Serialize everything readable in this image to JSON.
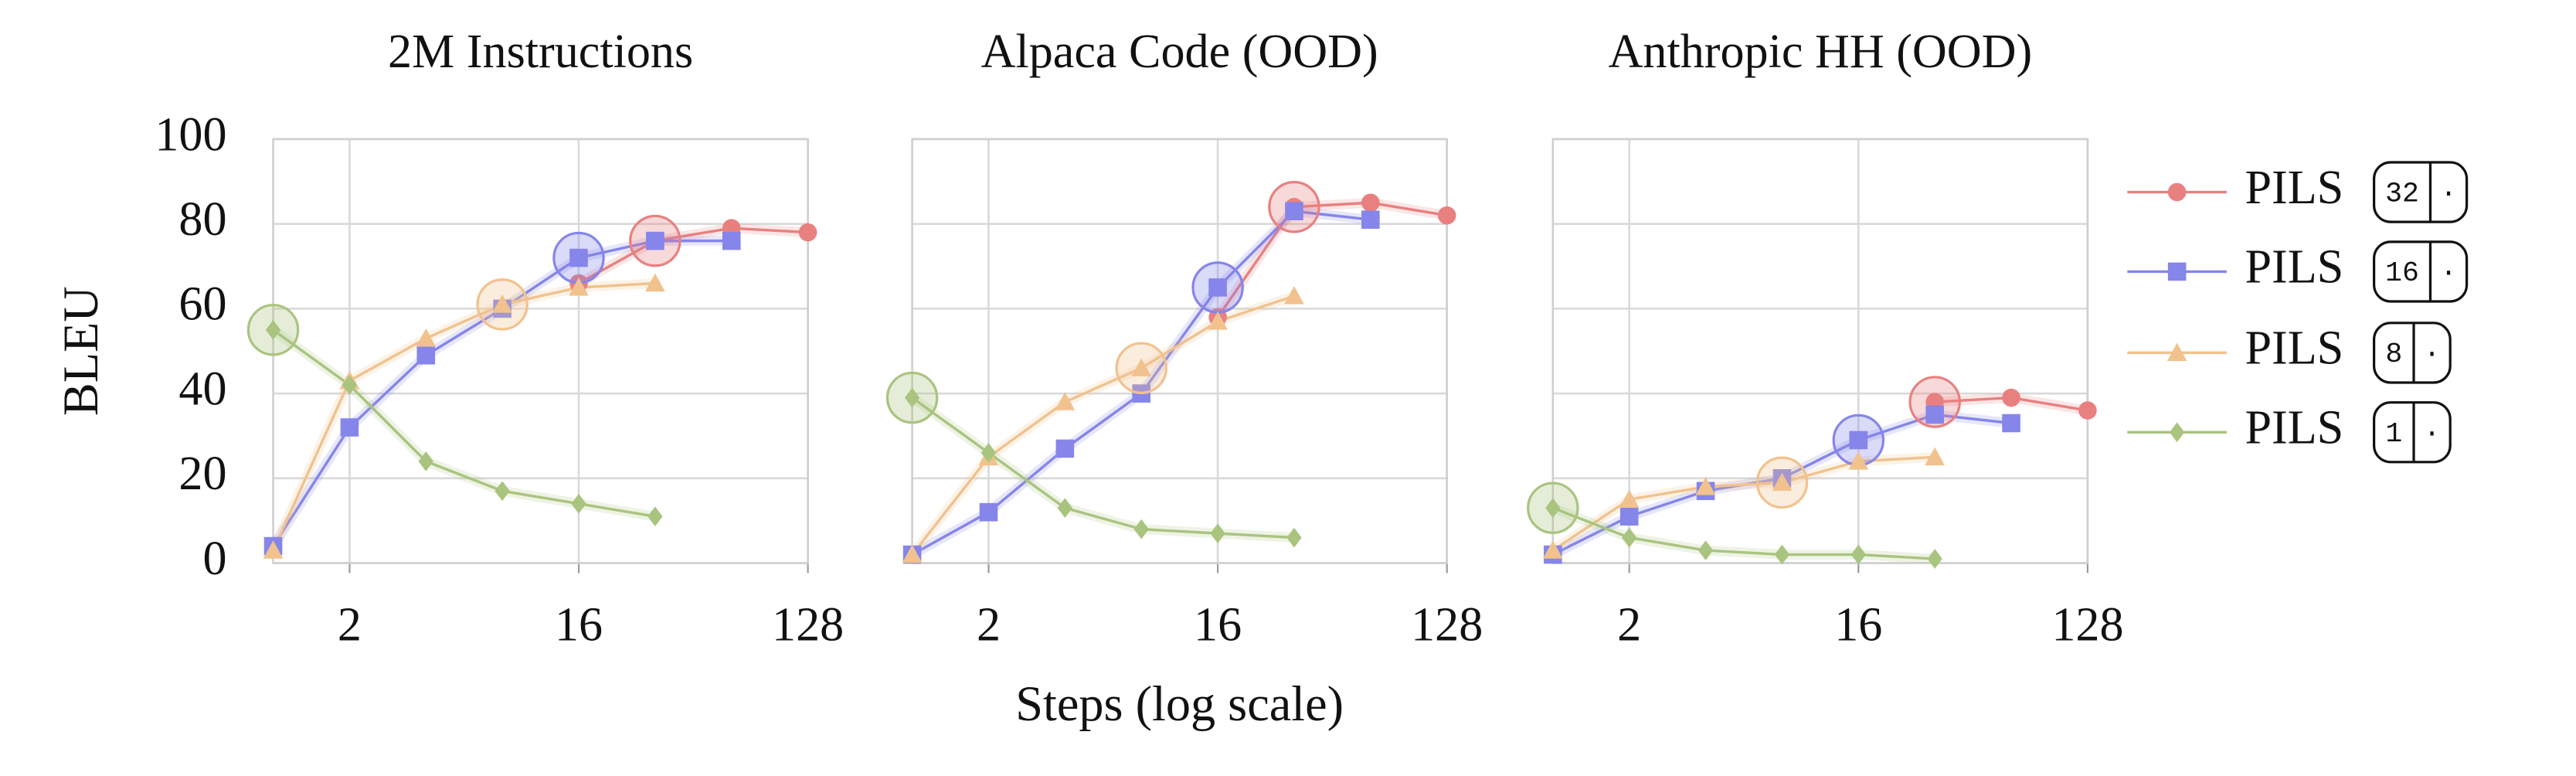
{
  "chart_data": [
    {
      "type": "line",
      "title": "2M Instructions",
      "ylabel": "BLEU",
      "ytick_labels": true,
      "x": [
        1,
        2,
        4,
        8,
        16,
        32,
        64,
        128
      ],
      "xlim": [
        1,
        128
      ],
      "xticks": [
        2,
        16,
        128
      ],
      "log_x": true,
      "ylim": [
        0,
        100
      ],
      "yticks": [
        0,
        20,
        40,
        60,
        80,
        100
      ],
      "grid": true,
      "series": [
        {
          "name": "PILS",
          "badge": [
            "32",
            "·"
          ],
          "color": "#e98080",
          "marker": "circle",
          "highlight": 32,
          "values": [
            null,
            null,
            null,
            null,
            66,
            76,
            79,
            78
          ]
        },
        {
          "name": "PILS",
          "badge": [
            "16",
            "·"
          ],
          "color": "#8585ea",
          "marker": "square",
          "highlight": 16,
          "values": [
            4,
            32,
            49,
            60,
            72,
            76,
            76,
            null
          ]
        },
        {
          "name": "PILS",
          "badge": [
            "8",
            "·"
          ],
          "color": "#f1c28e",
          "marker": "triangle",
          "highlight": 8,
          "values": [
            3,
            43,
            53,
            61,
            65,
            66,
            null,
            null
          ]
        },
        {
          "name": "PILS",
          "badge": [
            "1",
            "·"
          ],
          "color": "#a9c47f",
          "marker": "diamond",
          "highlight": 1,
          "values": [
            55,
            42,
            24,
            17,
            14,
            11,
            null,
            null
          ]
        }
      ]
    },
    {
      "type": "line",
      "title": "Alpaca Code (OOD)",
      "xlabel": "Steps (log scale)",
      "ytick_labels": false,
      "x": [
        1,
        2,
        4,
        8,
        16,
        32,
        64,
        128
      ],
      "xlim": [
        1,
        128
      ],
      "xticks": [
        2,
        16,
        128
      ],
      "log_x": true,
      "ylim": [
        0,
        100
      ],
      "yticks": [
        0,
        20,
        40,
        60,
        80,
        100
      ],
      "grid": true,
      "series": [
        {
          "name": "PILS",
          "color": "#e98080",
          "marker": "circle",
          "highlight": 32,
          "values": [
            null,
            null,
            null,
            null,
            58,
            84,
            85,
            82
          ]
        },
        {
          "name": "PILS",
          "color": "#8585ea",
          "marker": "square",
          "highlight": 16,
          "values": [
            2,
            12,
            27,
            40,
            65,
            83,
            81,
            null
          ]
        },
        {
          "name": "PILS",
          "color": "#f1c28e",
          "marker": "triangle",
          "highlight": 8,
          "values": [
            2,
            25,
            38,
            46,
            57,
            63,
            null,
            null
          ]
        },
        {
          "name": "PILS",
          "color": "#a9c47f",
          "marker": "diamond",
          "highlight": 1,
          "values": [
            39,
            26,
            13,
            8,
            7,
            6,
            null,
            null
          ]
        }
      ]
    },
    {
      "type": "line",
      "title": "Anthropic HH (OOD)",
      "ytick_labels": false,
      "x": [
        1,
        2,
        4,
        8,
        16,
        32,
        64,
        128
      ],
      "xlim": [
        1,
        128
      ],
      "xticks": [
        2,
        16,
        128
      ],
      "log_x": true,
      "ylim": [
        0,
        100
      ],
      "yticks": [
        0,
        20,
        40,
        60,
        80,
        100
      ],
      "grid": true,
      "series": [
        {
          "name": "PILS",
          "color": "#e98080",
          "marker": "circle",
          "highlight": 32,
          "values": [
            null,
            null,
            null,
            null,
            null,
            38,
            39,
            36
          ]
        },
        {
          "name": "PILS",
          "color": "#8585ea",
          "marker": "square",
          "highlight": 16,
          "values": [
            2,
            11,
            17,
            20,
            29,
            35,
            33,
            null
          ]
        },
        {
          "name": "PILS",
          "color": "#f1c28e",
          "marker": "triangle",
          "highlight": 8,
          "values": [
            3,
            15,
            18,
            19,
            24,
            25,
            null,
            null
          ]
        },
        {
          "name": "PILS",
          "color": "#a9c47f",
          "marker": "diamond",
          "highlight": 1,
          "values": [
            13,
            6,
            3,
            2,
            2,
            1,
            null,
            null
          ]
        }
      ]
    }
  ]
}
